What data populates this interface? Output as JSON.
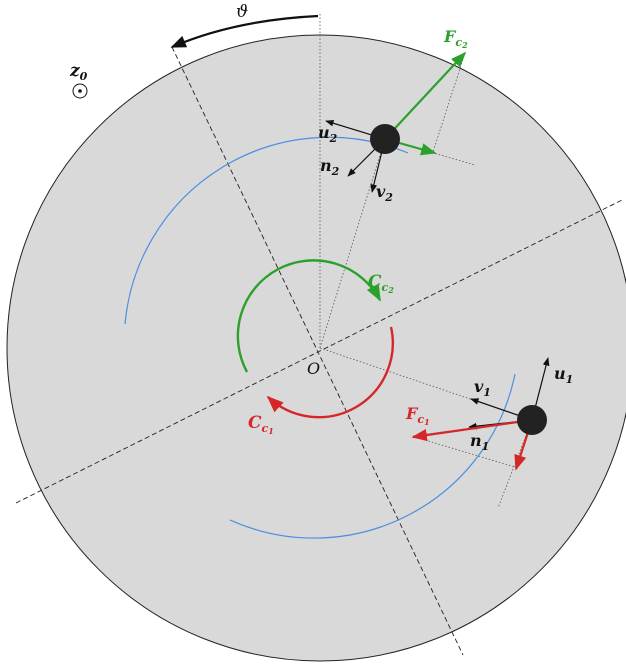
{
  "labels": {
    "theta": "ϑ",
    "z0": {
      "main": "z",
      "sub": "0"
    },
    "origin": "O",
    "u1": {
      "main": "u",
      "sub": "1"
    },
    "u2": {
      "main": "u",
      "sub": "2"
    },
    "v1": {
      "main": "v",
      "sub": "1"
    },
    "v2": {
      "main": "v",
      "sub": "2"
    },
    "n1": {
      "main": "n",
      "sub": "1"
    },
    "n2": {
      "main": "n",
      "sub": "2"
    },
    "Fc1": {
      "main": "F",
      "sub": "c",
      "subsub": "1"
    },
    "Fc2": {
      "main": "F",
      "sub": "c",
      "subsub": "2"
    },
    "Cc1": {
      "main": "C",
      "sub": "c",
      "subsub": "1"
    },
    "Cc2": {
      "main": "C",
      "sub": "c",
      "subsub": "2"
    }
  },
  "colors": {
    "disk_fill": "#d9d9d9",
    "disk_stroke": "#222222",
    "blue_arc": "#4a8fe0",
    "green": "#2ca02c",
    "red": "#d62728",
    "black": "#111111",
    "mass": "#222222"
  }
}
